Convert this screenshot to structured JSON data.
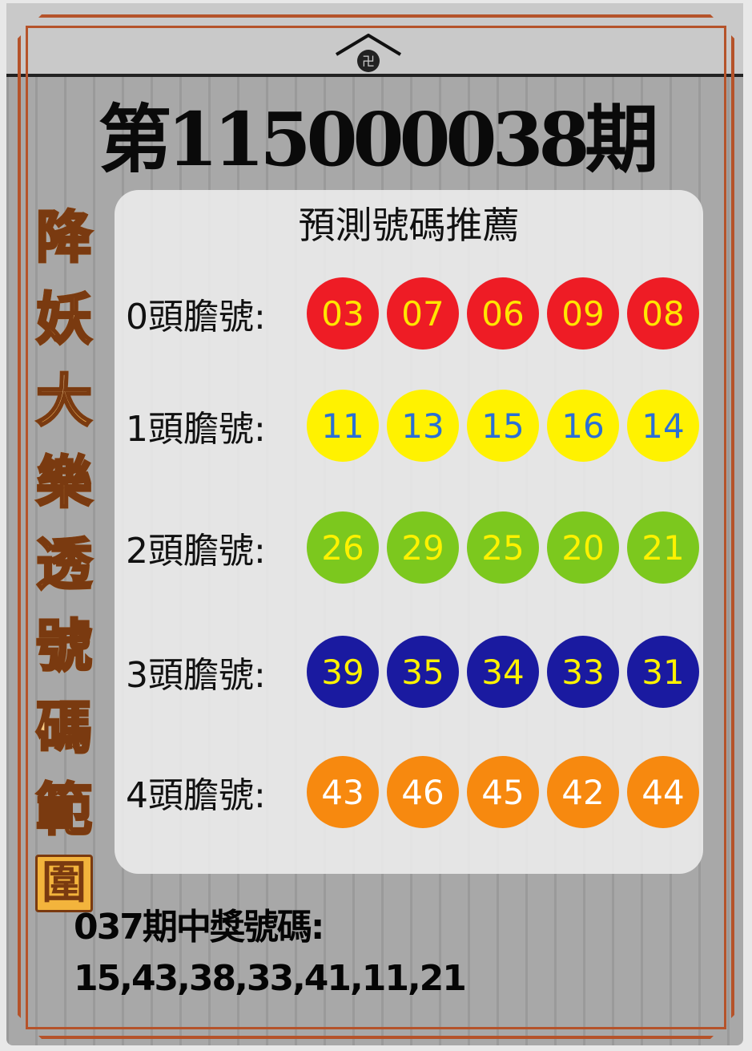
{
  "title": "第115000038期",
  "side_title": [
    "降",
    "妖",
    "大",
    "樂",
    "透",
    "號",
    "碼",
    "範",
    "圍"
  ],
  "card": {
    "subtitle": "預測號碼推薦",
    "rows": [
      {
        "label": "0頭膽號:",
        "numbers": [
          "03",
          "07",
          "06",
          "09",
          "08"
        ],
        "ball_color": "#ee1c25",
        "text_color": "#ffe600"
      },
      {
        "label": "1頭膽號:",
        "numbers": [
          "11",
          "13",
          "15",
          "16",
          "14"
        ],
        "ball_color": "#fff200",
        "text_color": "#2a6fd6"
      },
      {
        "label": "2頭膽號:",
        "numbers": [
          "26",
          "29",
          "25",
          "20",
          "21"
        ],
        "ball_color": "#7cc81e",
        "text_color": "#fff200"
      },
      {
        "label": "3頭膽號:",
        "numbers": [
          "39",
          "35",
          "34",
          "33",
          "31"
        ],
        "ball_color": "#1a1aa0",
        "text_color": "#fff200"
      },
      {
        "label": "4頭膽號:",
        "numbers": [
          "43",
          "46",
          "45",
          "42",
          "44"
        ],
        "ball_color": "#f7890f",
        "text_color": "#ffffff"
      }
    ]
  },
  "previous": {
    "label": "037期中獎號碼:",
    "numbers": "15,43,38,33,41,11,21"
  },
  "colors": {
    "frame": "#b5532a",
    "side_text": "#f6a830"
  }
}
